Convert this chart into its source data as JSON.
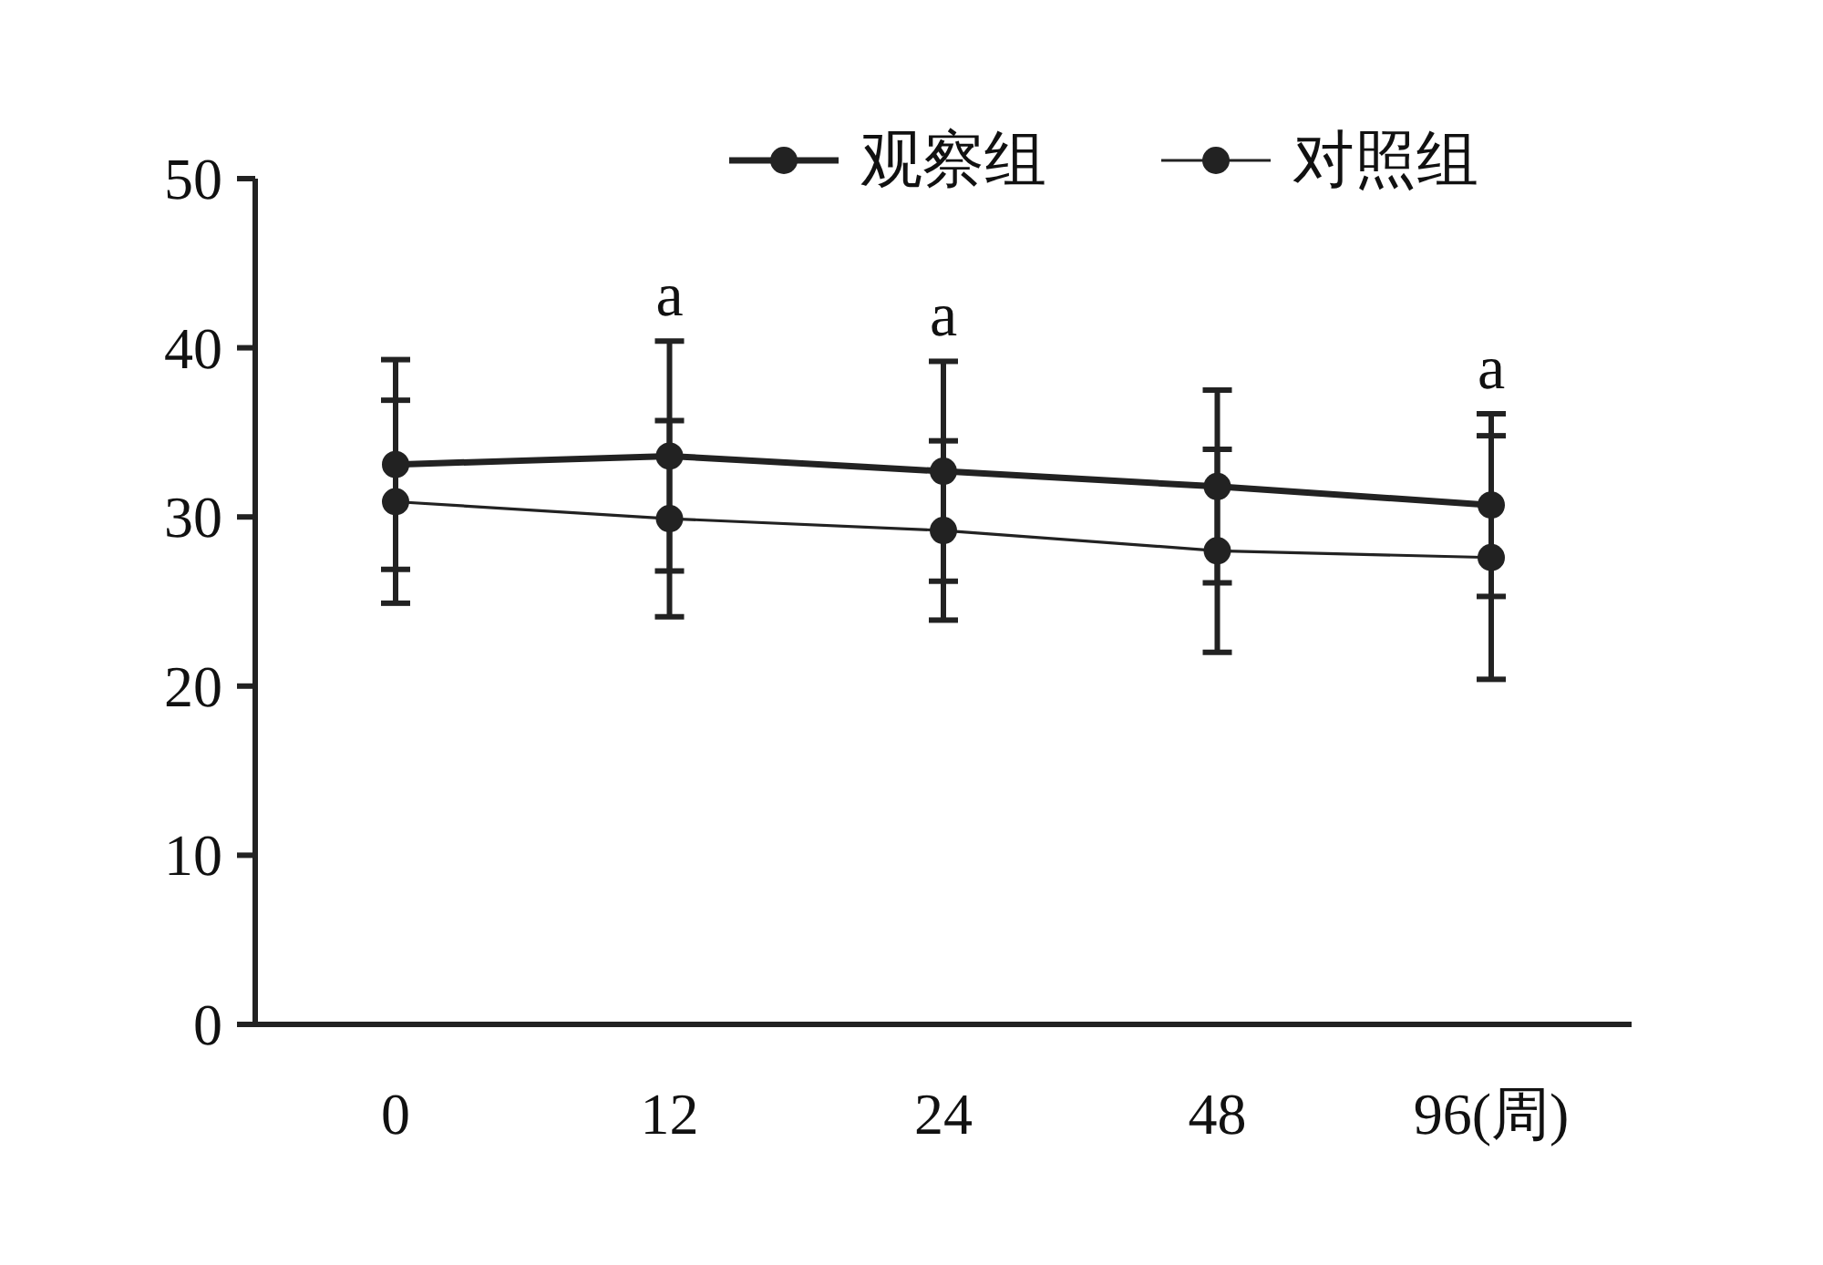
{
  "chart_data": {
    "type": "line",
    "categories": [
      "0",
      "12",
      "24",
      "48",
      "96(周)"
    ],
    "series": [
      {
        "name": "观察组",
        "color": "#222222",
        "values": [
          33.1,
          33.6,
          32.7,
          31.8,
          30.7
        ],
        "errors": [
          6.2,
          6.8,
          6.5,
          5.7,
          5.4
        ],
        "value_labels": [
          null,
          "a",
          "a",
          null,
          "a"
        ]
      },
      {
        "name": "对照组",
        "color": "#222222",
        "values": [
          30.9,
          29.9,
          29.2,
          28.0,
          27.6
        ],
        "errors": [
          6.0,
          5.8,
          5.3,
          6.0,
          7.2
        ]
      }
    ],
    "ylim": [
      0,
      50
    ],
    "yticks": [
      0,
      10,
      20,
      30,
      40,
      50
    ],
    "grid": false,
    "legend": "top right",
    "marker": "circle",
    "line_style": "solid"
  }
}
